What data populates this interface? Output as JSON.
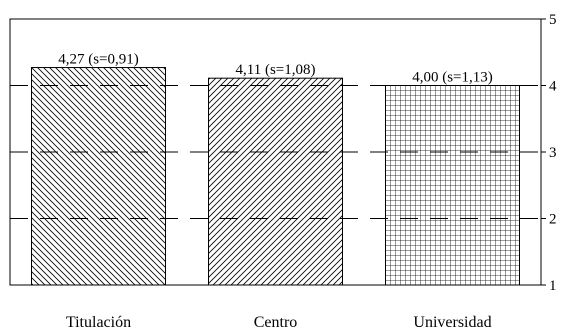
{
  "chart_data": {
    "type": "bar",
    "categories": [
      "Titulación",
      "Centro",
      "Universidad"
    ],
    "values": [
      4.27,
      4.11,
      4.0
    ],
    "bar_labels": [
      "4,27 (s=0,91)",
      "4,11 (s=1,08)",
      "4,00 (s=1,13)"
    ],
    "bar_patterns": [
      "diagonal-backslash-hatch",
      "diagonal-slash-hatch",
      "crosshatch-grid"
    ],
    "ylim": [
      1,
      5
    ],
    "yticks": [
      "1",
      "2",
      "3",
      "4",
      "5"
    ],
    "y_axis_side": "right",
    "grid": "dashed-horizontal",
    "title": "",
    "xlabel": "",
    "ylabel": ""
  }
}
